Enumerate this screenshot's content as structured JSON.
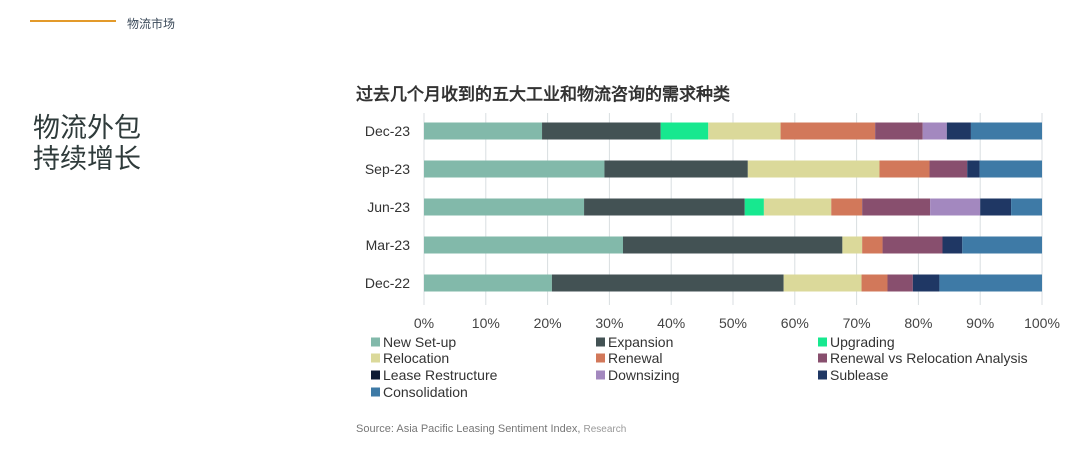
{
  "header": {
    "section": "物流市场"
  },
  "headline": [
    "物流外包",
    "持续增长"
  ],
  "source": {
    "text": "Source: Asia Pacific Leasing Sentiment Index,",
    "suffix": "Research"
  },
  "chart_data": {
    "type": "bar",
    "orientation": "horizontal",
    "stacked": "percent",
    "title": "过去几个月收到的五大工业和物流咨询的需求种类",
    "categories": [
      "Dec-23",
      "Sep-23",
      "Jun-23",
      "Mar-23",
      "Dec-22"
    ],
    "xlim": [
      0,
      100
    ],
    "xticks": [
      "0%",
      "10%",
      "20%",
      "30%",
      "40%",
      "50%",
      "60%",
      "70%",
      "80%",
      "90%",
      "100%"
    ],
    "grid": "vertical",
    "legend": "bottom",
    "series": [
      {
        "name": "New Set-up",
        "color": "#82b9aa",
        "values": [
          19.1,
          29.2,
          25.9,
          32.2,
          20.7
        ]
      },
      {
        "name": "Expansion",
        "color": "#435254",
        "values": [
          19.2,
          23.2,
          26.0,
          35.5,
          37.5
        ]
      },
      {
        "name": "Upgrading",
        "color": "#17e88f",
        "values": [
          7.7,
          0,
          3.1,
          0,
          0
        ]
      },
      {
        "name": "Relocation",
        "color": "#dbd99a",
        "values": [
          11.7,
          21.3,
          10.9,
          3.2,
          12.6
        ]
      },
      {
        "name": "Renewal",
        "color": "#d2785a",
        "values": [
          15.3,
          8.1,
          5.0,
          3.3,
          4.2
        ]
      },
      {
        "name": "Renewal vs Relocation Analysis",
        "color": "#884f6e",
        "values": [
          7.7,
          6.1,
          11.0,
          9.7,
          4.1
        ]
      },
      {
        "name": "Lease Restructure",
        "color": "#0d1a33",
        "values": [
          0,
          0,
          0,
          0,
          0
        ]
      },
      {
        "name": "Downsizing",
        "color": "#a388bf",
        "values": [
          3.9,
          0,
          8.1,
          0,
          0
        ]
      },
      {
        "name": "Sublease",
        "color": "#1f3764",
        "values": [
          3.9,
          2.0,
          5.0,
          3.2,
          4.3
        ]
      },
      {
        "name": "Consolidation",
        "color": "#3e7aa6",
        "values": [
          11.5,
          10.1,
          5.0,
          12.9,
          16.6
        ]
      }
    ]
  }
}
